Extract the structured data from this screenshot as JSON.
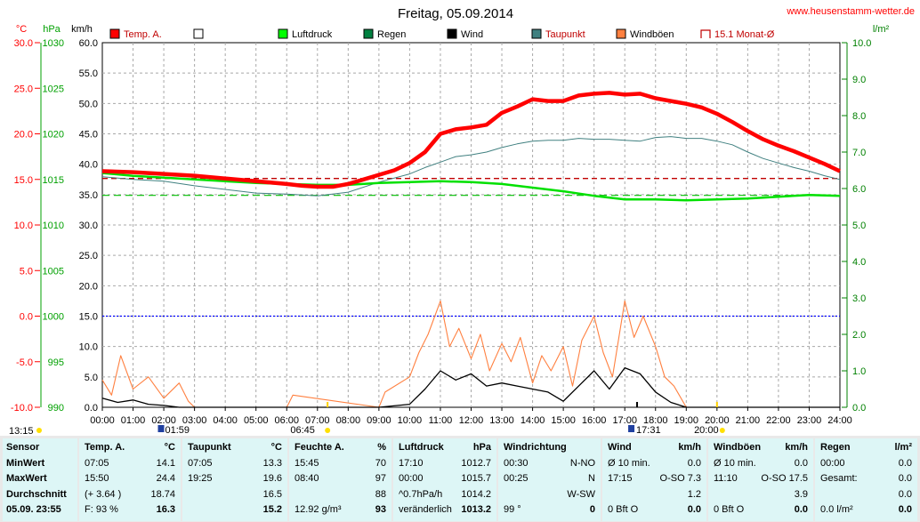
{
  "chart_data": {
    "type": "line",
    "title": "Freitag, 05.09.2014",
    "website": "www.heusenstamm-wetter.de",
    "x_ticks": [
      "00:00",
      "01:00",
      "02:00",
      "03:00",
      "04:00",
      "05:00",
      "06:00",
      "07:00",
      "08:00",
      "09:00",
      "10:00",
      "11:00",
      "12:00",
      "13:00",
      "14:00",
      "15:00",
      "16:00",
      "17:00",
      "18:00",
      "19:00",
      "20:00",
      "21:00",
      "22:00",
      "23:00",
      "24:00"
    ],
    "axes": {
      "temp": {
        "unit": "°C",
        "min": -10,
        "max": 30,
        "ticks": [
          "30.0",
          "25.0",
          "20.0",
          "15.0",
          "10.0",
          "5.0",
          "0.0",
          "-5.0",
          "-10.0"
        ],
        "color": "#ff0000"
      },
      "pressure": {
        "unit": "hPa",
        "min": 990,
        "max": 1030,
        "ticks": [
          "1030",
          "1025",
          "1020",
          "1015",
          "1010",
          "1005",
          "1000",
          "995",
          "990"
        ],
        "color": "#00a000"
      },
      "wind": {
        "unit": "km/h",
        "min": 0,
        "max": 60,
        "ticks": [
          "60.0",
          "55.0",
          "50.0",
          "45.0",
          "40.0",
          "35.0",
          "30.0",
          "25.0",
          "20.0",
          "15.0",
          "10.0",
          "5.0",
          "0.0"
        ],
        "color": "#000000"
      },
      "rain": {
        "unit": "l/m²",
        "min": 0,
        "max": 10,
        "ticks": [
          "10.0",
          "9.0",
          "8.0",
          "7.0",
          "6.0",
          "5.0",
          "4.0",
          "3.0",
          "2.0",
          "1.0",
          "0.0"
        ],
        "color": "#008000"
      }
    },
    "legend": [
      {
        "label": "Temp. A.",
        "color": "#ff0000",
        "style": "filled"
      },
      {
        "label": "",
        "color": "#ffffff",
        "style": "outline"
      },
      {
        "label": "Luftdruck",
        "color": "#00ff00",
        "style": "filled"
      },
      {
        "label": "Regen",
        "color": "#008040",
        "style": "filled"
      },
      {
        "label": "Wind",
        "color": "#000000",
        "style": "filled"
      },
      {
        "label": "Taupunkt",
        "color": "#408080",
        "style": "filled"
      },
      {
        "label": "Windböen",
        "color": "#ff8040",
        "style": "filled"
      },
      {
        "label": "15.1 Monat-Ø",
        "color": "#c00000",
        "style": "bracket"
      }
    ],
    "series": [
      {
        "name": "Temp. A.",
        "axis": "temp",
        "color": "#ff0000",
        "x": [
          0,
          1,
          2,
          3,
          4,
          5,
          6,
          6.5,
          7,
          7.5,
          8,
          8.5,
          9,
          9.5,
          10,
          10.5,
          11,
          11.5,
          12,
          12.5,
          13,
          13.5,
          14,
          14.5,
          15,
          15.5,
          16,
          16.5,
          17,
          17.5,
          18,
          18.5,
          19,
          19.5,
          20,
          20.5,
          21,
          21.5,
          22,
          22.5,
          23,
          23.5,
          24
        ],
        "y": [
          15.9,
          15.8,
          15.6,
          15.4,
          15.1,
          14.8,
          14.5,
          14.3,
          14.2,
          14.2,
          14.5,
          15.0,
          15.5,
          16.0,
          16.8,
          18.0,
          20.0,
          20.5,
          20.7,
          21.0,
          22.3,
          23.0,
          23.8,
          23.6,
          23.6,
          24.2,
          24.4,
          24.5,
          24.3,
          24.4,
          23.9,
          23.6,
          23.3,
          22.9,
          22.2,
          21.3,
          20.3,
          19.4,
          18.7,
          18.1,
          17.4,
          16.7,
          15.9
        ]
      },
      {
        "name": "Taupunkt",
        "axis": "temp",
        "color": "#408080",
        "x": [
          0,
          1,
          2,
          3,
          4,
          5,
          6,
          7,
          8,
          9,
          10,
          10.5,
          11,
          11.5,
          12,
          12.5,
          13,
          13.5,
          14,
          14.5,
          15,
          15.5,
          16,
          16.5,
          17,
          17.5,
          18,
          18.5,
          19,
          19.5,
          20,
          20.5,
          21,
          21.5,
          22,
          22.5,
          23,
          23.5,
          24
        ],
        "y": [
          15.3,
          15.0,
          14.8,
          14.3,
          13.9,
          13.5,
          13.4,
          13.2,
          13.6,
          14.7,
          15.6,
          16.3,
          16.9,
          17.5,
          17.7,
          18.0,
          18.5,
          18.9,
          19.2,
          19.3,
          19.3,
          19.5,
          19.4,
          19.4,
          19.3,
          19.2,
          19.6,
          19.7,
          19.5,
          19.5,
          19.2,
          18.8,
          18.0,
          17.3,
          16.8,
          16.3,
          15.9,
          15.4,
          15.0
        ]
      },
      {
        "name": "Luftdruck",
        "axis": "pressure",
        "color": "#00e000",
        "x": [
          0,
          1,
          2,
          3,
          4,
          5,
          6,
          7,
          8,
          9,
          10,
          11,
          12,
          13,
          14,
          15,
          16,
          17,
          18,
          19,
          20,
          21,
          22,
          23,
          24
        ],
        "y": [
          1015.7,
          1015.4,
          1015.2,
          1015.0,
          1014.8,
          1014.6,
          1014.5,
          1014.4,
          1014.4,
          1014.6,
          1014.7,
          1014.8,
          1014.7,
          1014.5,
          1014.1,
          1013.7,
          1013.2,
          1012.8,
          1012.8,
          1012.7,
          1012.8,
          1012.9,
          1013.1,
          1013.3,
          1013.2
        ]
      },
      {
        "name": "Wind",
        "axis": "wind",
        "color": "#000000",
        "x": [
          0,
          0.5,
          1,
          1.5,
          2,
          2.5,
          3,
          9,
          10,
          10.5,
          11,
          11.5,
          12,
          12.5,
          13,
          13.5,
          14,
          14.5,
          15,
          15.5,
          16,
          16.5,
          17,
          17.5,
          18,
          18.5,
          19,
          24
        ],
        "y": [
          1.5,
          0.8,
          1.2,
          0.5,
          0.3,
          0,
          0,
          0,
          0.5,
          3.0,
          6.0,
          4.5,
          5.5,
          3.5,
          4.0,
          3.5,
          3.0,
          2.5,
          1.0,
          3.5,
          6.0,
          3.0,
          6.5,
          5.5,
          2.5,
          0.8,
          0,
          0
        ]
      },
      {
        "name": "Windböen",
        "axis": "wind",
        "color": "#ff8040",
        "x": [
          0,
          0.3,
          0.6,
          1,
          1.5,
          2,
          2.5,
          2.8,
          3,
          6,
          6.2,
          9,
          9.2,
          10,
          10.3,
          10.6,
          11,
          11.3,
          11.6,
          12,
          12.3,
          12.6,
          13,
          13.3,
          13.6,
          14,
          14.3,
          14.6,
          15,
          15.3,
          15.6,
          16,
          16.3,
          16.6,
          17,
          17.3,
          17.6,
          18,
          18.3,
          18.6,
          19,
          19.3,
          24
        ],
        "y": [
          4.5,
          2.0,
          8.5,
          3.0,
          5.0,
          1.5,
          4.0,
          1.0,
          0,
          0,
          2.0,
          0,
          2.5,
          5.0,
          9.0,
          12.0,
          17.5,
          10.0,
          13.0,
          8.0,
          12.0,
          6.0,
          10.5,
          7.5,
          11.5,
          4.0,
          8.5,
          6.0,
          10.0,
          3.5,
          11.0,
          15.0,
          9.0,
          5.0,
          17.5,
          11.5,
          15.0,
          10.0,
          5.0,
          3.5,
          0,
          0,
          0
        ]
      },
      {
        "name": "15.1 Monat-Ø",
        "axis": "temp",
        "color": "#c00000",
        "style": "dashed",
        "x": [
          0,
          24
        ],
        "y": [
          15.1,
          15.1
        ]
      }
    ],
    "reference_lines": [
      {
        "axis": "temp",
        "value": 0,
        "color": "#0000ff",
        "style": "dotted"
      },
      {
        "axis": "pressure",
        "value": 1013.25,
        "color": "#00c000",
        "style": "dashed"
      }
    ],
    "markers": {
      "sunrise": "06:45",
      "sunset": "20:00",
      "moonrise": "17:31",
      "moonset": "01:59",
      "other": "13:15"
    }
  },
  "table": {
    "columns": [
      {
        "header": [
          "Sensor",
          ""
        ],
        "rows": [
          [
            "MinWert",
            ""
          ],
          [
            "MaxWert",
            ""
          ],
          [
            "Durchschnitt",
            ""
          ],
          [
            "05.09. 23:55",
            ""
          ]
        ]
      },
      {
        "header": [
          "Temp. A.",
          "°C"
        ],
        "rows": [
          [
            "07:05",
            "14.1"
          ],
          [
            "15:50",
            "24.4"
          ],
          [
            "(+ 3.64 )",
            "18.74"
          ],
          [
            "F: 93 %",
            "16.3"
          ]
        ]
      },
      {
        "header": [
          "Taupunkt",
          "°C"
        ],
        "rows": [
          [
            "07:05",
            "13.3"
          ],
          [
            "19:25",
            "19.6"
          ],
          [
            "",
            "16.5"
          ],
          [
            "",
            "15.2"
          ]
        ]
      },
      {
        "header": [
          "Feuchte A.",
          "%"
        ],
        "rows": [
          [
            "15:45",
            "70"
          ],
          [
            "08:40",
            "97"
          ],
          [
            "",
            "88"
          ],
          [
            "12.92 g/m³",
            "93"
          ]
        ]
      },
      {
        "header": [
          "Luftdruck",
          "hPa"
        ],
        "rows": [
          [
            "17:10",
            "1012.7"
          ],
          [
            "00:00",
            "1015.7"
          ],
          [
            "^0.7hPa/h",
            "1014.2"
          ],
          [
            "veränderlich",
            "1013.2"
          ]
        ]
      },
      {
        "header": [
          "Windrichtung",
          ""
        ],
        "rows": [
          [
            "00:30",
            "N-NO"
          ],
          [
            "00:25",
            "N"
          ],
          [
            "",
            "W-SW"
          ],
          [
            "99 °",
            "0"
          ]
        ]
      },
      {
        "header": [
          "Wind",
          "km/h"
        ],
        "rows": [
          [
            "Ø 10 min.",
            "0.0"
          ],
          [
            "17:15",
            "O-SO 7.3"
          ],
          [
            "",
            "1.2"
          ],
          [
            "0 Bft O",
            "0.0"
          ]
        ]
      },
      {
        "header": [
          "Windböen",
          "km/h"
        ],
        "rows": [
          [
            "Ø 10 min.",
            "0.0"
          ],
          [
            "11:10",
            "O-SO 17.5"
          ],
          [
            "",
            "3.9"
          ],
          [
            "0 Bft O",
            "0.0"
          ]
        ]
      },
      {
        "header": [
          "Regen",
          "l/m²"
        ],
        "rows": [
          [
            "00:00",
            "0.0"
          ],
          [
            "Gesamt:",
            "0.0"
          ],
          [
            "",
            "0.0"
          ],
          [
            "0.0 l/m²",
            "0.0"
          ]
        ]
      }
    ]
  }
}
